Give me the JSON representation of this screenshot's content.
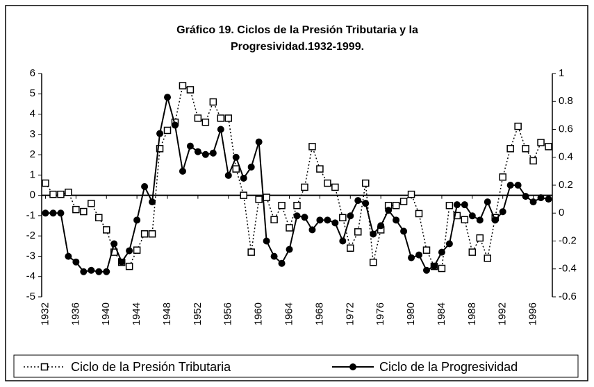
{
  "chart_data": {
    "type": "line",
    "title": [
      "Gráfico 19. Ciclos de la Presión Tributaria y la",
      "Progresividad.1932-1999."
    ],
    "categories": [
      "1932",
      null,
      null,
      null,
      "1936",
      null,
      null,
      null,
      "1940",
      null,
      null,
      null,
      "1944",
      null,
      null,
      null,
      "1948",
      null,
      null,
      null,
      "1952",
      null,
      null,
      null,
      "1956",
      null,
      null,
      null,
      "1960",
      null,
      null,
      null,
      "1964",
      null,
      null,
      null,
      "1968",
      null,
      null,
      null,
      "1972",
      null,
      null,
      null,
      "1976",
      null,
      null,
      null,
      "1980",
      null,
      null,
      null,
      "1984",
      null,
      null,
      null,
      "1988",
      null,
      null,
      null,
      "1992",
      null,
      null,
      null,
      "1996",
      null,
      null
    ],
    "series": [
      {
        "name": "Ciclo de la Presión Tributaria",
        "color": "#000000",
        "axis": "y",
        "marker": "square",
        "dashed": true,
        "values": [
          0.6,
          0.05,
          0.05,
          0.15,
          -0.7,
          -0.8,
          -0.4,
          -1.1,
          -1.7,
          -2.8,
          -3.3,
          -3.5,
          -2.7,
          -1.9,
          -1.9,
          2.3,
          3.2,
          3.6,
          5.4,
          5.2,
          3.8,
          3.6,
          4.6,
          3.8,
          3.8,
          1.3,
          0,
          -2.8,
          -0.2,
          -0.1,
          -1.2,
          -0.5,
          -1.6,
          -0.5,
          0.4,
          2.4,
          1.3,
          0.6,
          0.4,
          -1.1,
          -2.6,
          -1.8,
          0.6,
          -3.3,
          -1.7,
          -0.5,
          -0.5,
          -0.3,
          0.05,
          -0.9,
          -2.7,
          -3.5,
          -3.6,
          -0.5,
          -1.0,
          -1.2,
          -2.8,
          -2.1,
          -3.1,
          -1.1,
          0.9,
          2.3,
          3.4,
          2.3,
          1.7,
          2.6,
          2.4
        ]
      },
      {
        "name": "Ciclo de la Progresividad",
        "color": "#000000",
        "axis": "y2",
        "marker": "circle",
        "dashed": false,
        "values": [
          0.0,
          0.0,
          0.0,
          -0.31,
          -0.35,
          -0.42,
          -0.41,
          -0.42,
          -0.42,
          -0.22,
          -0.35,
          -0.27,
          -0.05,
          0.19,
          0.08,
          0.57,
          0.83,
          0.63,
          0.3,
          0.48,
          0.44,
          0.42,
          0.43,
          0.6,
          0.27,
          0.4,
          0.25,
          0.33,
          0.51,
          -0.2,
          -0.31,
          -0.36,
          -0.26,
          -0.02,
          -0.03,
          -0.12,
          -0.05,
          -0.05,
          -0.07,
          -0.2,
          -0.02,
          0.09,
          0.07,
          -0.15,
          -0.09,
          0.02,
          -0.05,
          -0.13,
          -0.32,
          -0.3,
          -0.41,
          -0.38,
          -0.28,
          -0.22,
          0.06,
          0.06,
          -0.02,
          -0.05,
          0.08,
          -0.05,
          0.01,
          0.2,
          0.2,
          0.12,
          0.08,
          0.11,
          0.1
        ]
      }
    ],
    "ylim": [
      -5,
      6
    ],
    "yticks": [
      -5,
      -4,
      -3,
      -2,
      -1,
      0,
      1,
      2,
      3,
      4,
      5,
      6
    ],
    "y2lim": [
      -0.6,
      1
    ],
    "y2ticks": [
      -0.6,
      -0.4,
      -0.2,
      0,
      0.2,
      0.4,
      0.6,
      0.8,
      1
    ],
    "grid": false,
    "legend": "bottom"
  }
}
